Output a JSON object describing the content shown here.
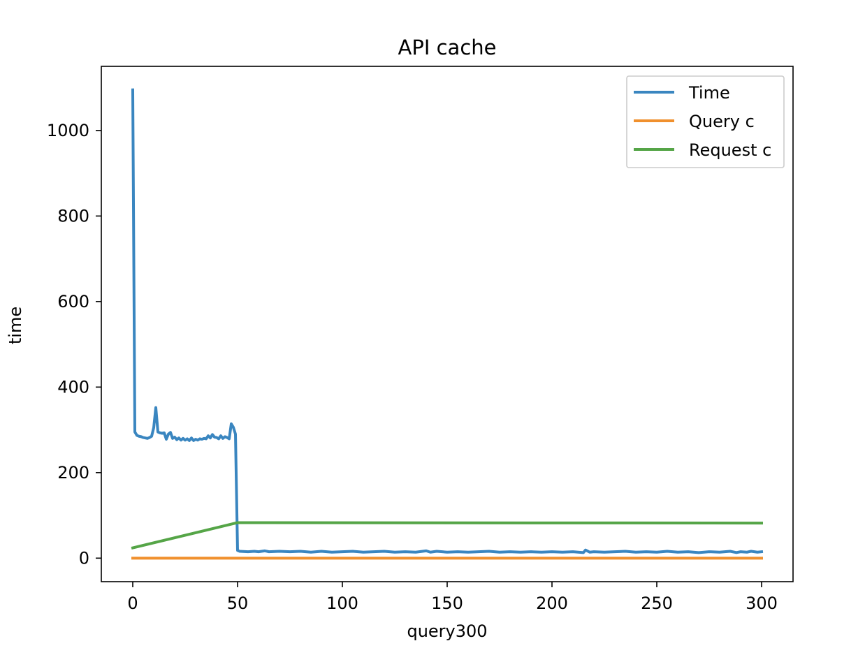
{
  "chart_data": {
    "type": "line",
    "title": "API cache",
    "xlabel": "query300",
    "ylabel": "time",
    "xlim": [
      -15,
      315
    ],
    "ylim": [
      -55,
      1150
    ],
    "xticks": [
      0,
      50,
      100,
      150,
      200,
      250,
      300
    ],
    "yticks": [
      0,
      200,
      400,
      600,
      800,
      1000
    ],
    "grid": false,
    "legend_position": "top-right",
    "series": [
      {
        "name": "Time",
        "color": "#3a86c0",
        "points": [
          [
            0,
            1095
          ],
          [
            1,
            295
          ],
          [
            2,
            287
          ],
          [
            3,
            285
          ],
          [
            4,
            284
          ],
          [
            5,
            282
          ],
          [
            6,
            281
          ],
          [
            7,
            280
          ],
          [
            8,
            282
          ],
          [
            9,
            285
          ],
          [
            10,
            305
          ],
          [
            11,
            352
          ],
          [
            12,
            295
          ],
          [
            13,
            293
          ],
          [
            14,
            292
          ],
          [
            15,
            293
          ],
          [
            16,
            278
          ],
          [
            17,
            290
          ],
          [
            18,
            294
          ],
          [
            19,
            280
          ],
          [
            20,
            283
          ],
          [
            21,
            277
          ],
          [
            22,
            281
          ],
          [
            23,
            276
          ],
          [
            24,
            280
          ],
          [
            25,
            276
          ],
          [
            26,
            279
          ],
          [
            27,
            275
          ],
          [
            28,
            281
          ],
          [
            29,
            275
          ],
          [
            30,
            278
          ],
          [
            31,
            276
          ],
          [
            32,
            279
          ],
          [
            33,
            278
          ],
          [
            34,
            280
          ],
          [
            35,
            279
          ],
          [
            36,
            286
          ],
          [
            37,
            281
          ],
          [
            38,
            289
          ],
          [
            39,
            283
          ],
          [
            40,
            282
          ],
          [
            41,
            279
          ],
          [
            42,
            286
          ],
          [
            43,
            280
          ],
          [
            44,
            284
          ],
          [
            45,
            282
          ],
          [
            46,
            279
          ],
          [
            47,
            314
          ],
          [
            48,
            306
          ],
          [
            49,
            290
          ],
          [
            50,
            18
          ],
          [
            51,
            16
          ],
          [
            55,
            15
          ],
          [
            58,
            16
          ],
          [
            60,
            15
          ],
          [
            63,
            17
          ],
          [
            65,
            15
          ],
          [
            70,
            16
          ],
          [
            75,
            15
          ],
          [
            80,
            16
          ],
          [
            85,
            14
          ],
          [
            90,
            16
          ],
          [
            95,
            14
          ],
          [
            100,
            15
          ],
          [
            105,
            16
          ],
          [
            110,
            14
          ],
          [
            115,
            15
          ],
          [
            120,
            16
          ],
          [
            125,
            14
          ],
          [
            130,
            15
          ],
          [
            135,
            14
          ],
          [
            140,
            17
          ],
          [
            142,
            14
          ],
          [
            145,
            16
          ],
          [
            150,
            14
          ],
          [
            155,
            15
          ],
          [
            160,
            14
          ],
          [
            165,
            15
          ],
          [
            170,
            16
          ],
          [
            175,
            14
          ],
          [
            180,
            15
          ],
          [
            185,
            14
          ],
          [
            190,
            15
          ],
          [
            195,
            14
          ],
          [
            200,
            15
          ],
          [
            205,
            14
          ],
          [
            210,
            15
          ],
          [
            215,
            13
          ],
          [
            216,
            19
          ],
          [
            218,
            14
          ],
          [
            220,
            15
          ],
          [
            225,
            14
          ],
          [
            230,
            15
          ],
          [
            235,
            16
          ],
          [
            240,
            14
          ],
          [
            245,
            15
          ],
          [
            250,
            14
          ],
          [
            255,
            16
          ],
          [
            260,
            14
          ],
          [
            265,
            15
          ],
          [
            270,
            13
          ],
          [
            275,
            15
          ],
          [
            280,
            14
          ],
          [
            285,
            16
          ],
          [
            288,
            13
          ],
          [
            290,
            15
          ],
          [
            293,
            14
          ],
          [
            295,
            16
          ],
          [
            298,
            14
          ],
          [
            300,
            15
          ]
        ]
      },
      {
        "name": "Query c",
        "color": "#f0902d",
        "points": [
          [
            0,
            0
          ],
          [
            300,
            0
          ]
        ]
      },
      {
        "name": "Request c",
        "color": "#55a547",
        "points": [
          [
            0,
            24
          ],
          [
            50,
            83
          ],
          [
            300,
            82
          ]
        ]
      }
    ]
  }
}
